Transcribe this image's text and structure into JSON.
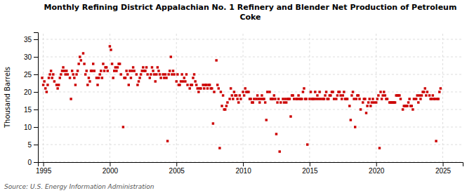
{
  "chart_data": {
    "type": "scatter",
    "title": "Monthly Refining District Appalachian No. 1 Refinery and Blender Net Production of Petroleum\nCoke",
    "ylabel": "Thousand Barrels",
    "source": "Source: U.S. Energy Information Administration",
    "color": "#cc0000",
    "marker": "square",
    "grid": true,
    "xlim": [
      1994.6,
      2026.5
    ],
    "ylim": [
      0,
      37
    ],
    "xticks": [
      1995,
      2000,
      2005,
      2010,
      2015,
      2020,
      2025
    ],
    "yticks": [
      0,
      5,
      10,
      15,
      20,
      25,
      30,
      35
    ],
    "x": [
      1994.917,
      1995.0,
      1995.083,
      1995.167,
      1995.25,
      1995.333,
      1995.417,
      1995.5,
      1995.583,
      1995.667,
      1995.75,
      1995.833,
      1996.0,
      1996.083,
      1996.167,
      1996.25,
      1996.333,
      1996.417,
      1996.5,
      1996.583,
      1996.667,
      1996.75,
      1996.833,
      1997.0,
      1997.083,
      1997.167,
      1997.25,
      1997.333,
      1997.417,
      1997.5,
      1997.583,
      1997.667,
      1997.75,
      1997.833,
      1998.0,
      1998.083,
      1998.167,
      1998.25,
      1998.333,
      1998.417,
      1998.5,
      1998.583,
      1998.667,
      1998.75,
      1998.833,
      1999.0,
      1999.083,
      1999.167,
      1999.25,
      1999.333,
      1999.417,
      1999.5,
      1999.583,
      1999.667,
      1999.75,
      1999.833,
      2000.0,
      2000.083,
      2000.167,
      2000.25,
      2000.333,
      2000.417,
      2000.5,
      2000.583,
      2000.667,
      2000.75,
      2000.833,
      2001.0,
      2001.083,
      2001.167,
      2001.25,
      2001.333,
      2001.417,
      2001.5,
      2001.583,
      2001.667,
      2001.75,
      2001.833,
      2002.0,
      2002.083,
      2002.167,
      2002.25,
      2002.333,
      2002.417,
      2002.5,
      2002.583,
      2002.667,
      2002.75,
      2002.833,
      2003.0,
      2003.083,
      2003.167,
      2003.25,
      2003.333,
      2003.417,
      2003.5,
      2003.583,
      2003.667,
      2003.75,
      2003.833,
      2004.0,
      2004.083,
      2004.167,
      2004.25,
      2004.333,
      2004.417,
      2004.5,
      2004.583,
      2004.667,
      2004.75,
      2004.833,
      2005.0,
      2005.083,
      2005.167,
      2005.25,
      2005.333,
      2005.417,
      2005.5,
      2005.583,
      2005.667,
      2005.75,
      2005.833,
      2006.0,
      2006.083,
      2006.167,
      2006.25,
      2006.333,
      2006.417,
      2006.5,
      2006.583,
      2006.667,
      2006.75,
      2006.833,
      2007.0,
      2007.083,
      2007.167,
      2007.25,
      2007.333,
      2007.417,
      2007.5,
      2007.583,
      2007.667,
      2007.75,
      2007.833,
      2008.0,
      2008.083,
      2008.167,
      2008.25,
      2008.333,
      2008.417,
      2008.5,
      2008.583,
      2008.667,
      2008.75,
      2008.833,
      2009.0,
      2009.083,
      2009.167,
      2009.25,
      2009.333,
      2009.417,
      2009.5,
      2009.583,
      2009.667,
      2009.75,
      2009.833,
      2010.0,
      2010.083,
      2010.167,
      2010.25,
      2010.333,
      2010.417,
      2010.5,
      2010.583,
      2010.667,
      2010.75,
      2010.833,
      2011.0,
      2011.083,
      2011.167,
      2011.25,
      2011.333,
      2011.417,
      2011.5,
      2011.583,
      2011.667,
      2011.75,
      2011.833,
      2012.0,
      2012.083,
      2012.167,
      2012.25,
      2012.333,
      2012.417,
      2012.5,
      2012.583,
      2012.667,
      2012.75,
      2012.833,
      2013.0,
      2013.083,
      2013.167,
      2013.25,
      2013.333,
      2013.417,
      2013.5,
      2013.583,
      2013.667,
      2013.75,
      2013.833,
      2014.0,
      2014.083,
      2014.167,
      2014.25,
      2014.333,
      2014.417,
      2014.5,
      2014.583,
      2014.667,
      2014.75,
      2014.833,
      2015.0,
      2015.083,
      2015.167,
      2015.25,
      2015.333,
      2015.417,
      2015.5,
      2015.583,
      2015.667,
      2015.75,
      2015.833,
      2016.0,
      2016.083,
      2016.167,
      2016.25,
      2016.333,
      2016.417,
      2016.5,
      2016.583,
      2016.667,
      2016.75,
      2016.833,
      2017.0,
      2017.083,
      2017.167,
      2017.25,
      2017.333,
      2017.417,
      2017.5,
      2017.583,
      2017.667,
      2017.75,
      2017.833,
      2018.0,
      2018.083,
      2018.167,
      2018.25,
      2018.333,
      2018.417,
      2018.5,
      2018.583,
      2018.667,
      2018.75,
      2018.833,
      2019.0,
      2019.083,
      2019.167,
      2019.25,
      2019.333,
      2019.417,
      2019.5,
      2019.583,
      2019.667,
      2019.75,
      2019.833,
      2020.0,
      2020.083,
      2020.167,
      2020.25,
      2020.333,
      2020.417,
      2020.5,
      2020.583,
      2020.667,
      2020.75,
      2020.833,
      2021.0,
      2021.083,
      2021.167,
      2021.25,
      2021.333,
      2021.417,
      2021.5,
      2021.583,
      2021.667,
      2021.75,
      2021.833,
      2022.0,
      2022.083,
      2022.167,
      2022.25,
      2022.333,
      2022.417,
      2022.5,
      2022.583,
      2022.667,
      2022.75,
      2022.833,
      2023.0,
      2023.083,
      2023.167,
      2023.25,
      2023.333,
      2023.417,
      2023.5,
      2023.583,
      2023.667,
      2023.75,
      2023.833,
      2024.0,
      2024.083,
      2024.167,
      2024.25,
      2024.333,
      2024.417,
      2024.5,
      2024.583,
      2024.667,
      2024.75,
      2024.833
    ],
    "values": [
      24,
      22,
      23,
      21,
      20,
      22,
      24,
      25,
      26,
      24,
      25,
      23,
      22,
      21,
      22,
      24,
      25,
      26,
      27,
      26,
      25,
      26,
      25,
      24,
      18,
      26,
      25,
      24,
      22,
      25,
      26,
      28,
      30,
      29,
      31,
      28,
      25,
      26,
      22,
      24,
      23,
      26,
      26,
      28,
      26,
      24,
      22,
      24,
      25,
      26,
      24,
      28,
      26,
      27,
      27,
      26,
      33,
      32,
      28,
      24,
      26,
      27,
      26,
      27,
      28,
      28,
      25,
      10,
      24,
      24,
      26,
      25,
      22,
      26,
      24,
      26,
      27,
      26,
      25,
      22,
      23,
      24,
      25,
      26,
      27,
      26,
      26,
      27,
      25,
      24,
      25,
      27,
      26,
      25,
      23,
      25,
      27,
      26,
      25,
      24,
      25,
      24,
      25,
      24,
      6,
      25,
      26,
      30,
      25,
      26,
      25,
      23,
      25,
      22,
      22,
      23,
      25,
      23,
      24,
      23,
      25,
      22,
      21,
      22,
      22,
      24,
      25,
      23,
      22,
      21,
      20,
      21,
      21,
      22,
      21,
      22,
      22,
      21,
      22,
      22,
      21,
      21,
      11,
      20,
      29,
      22,
      21,
      4,
      20,
      16,
      19,
      15,
      15,
      16,
      17,
      18,
      21,
      19,
      18,
      20,
      19,
      19,
      18,
      17,
      19,
      18,
      20,
      19,
      21,
      20,
      20,
      20,
      18,
      18,
      17,
      17,
      18,
      18,
      19,
      18,
      17,
      18,
      19,
      18,
      18,
      17,
      12,
      20,
      20,
      18,
      18,
      18,
      19,
      18,
      8,
      17,
      18,
      3,
      17,
      18,
      17,
      18,
      17,
      18,
      18,
      18,
      13,
      19,
      19,
      18,
      18,
      18,
      19,
      18,
      18,
      18,
      20,
      21,
      18,
      18,
      5,
      18,
      20,
      18,
      18,
      18,
      20,
      18,
      19,
      18,
      20,
      18,
      18,
      18,
      19,
      20,
      18,
      18,
      19,
      19,
      20,
      20,
      18,
      18,
      19,
      20,
      20,
      19,
      18,
      19,
      20,
      18,
      18,
      18,
      16,
      12,
      19,
      20,
      18,
      10,
      18,
      19,
      19,
      18,
      15,
      17,
      18,
      18,
      14,
      16,
      17,
      18,
      16,
      17,
      18,
      17,
      17,
      18,
      19,
      4,
      20,
      18,
      19,
      20,
      19,
      18,
      18,
      17,
      17,
      17,
      17,
      17,
      17,
      19,
      19,
      19,
      19,
      18,
      15,
      16,
      16,
      16,
      16,
      17,
      18,
      16,
      16,
      15,
      18,
      18,
      19,
      17,
      19,
      18,
      19,
      20,
      20,
      21,
      19,
      20,
      19,
      18,
      18,
      19,
      18,
      18,
      6,
      18,
      18,
      20,
      21
    ]
  }
}
